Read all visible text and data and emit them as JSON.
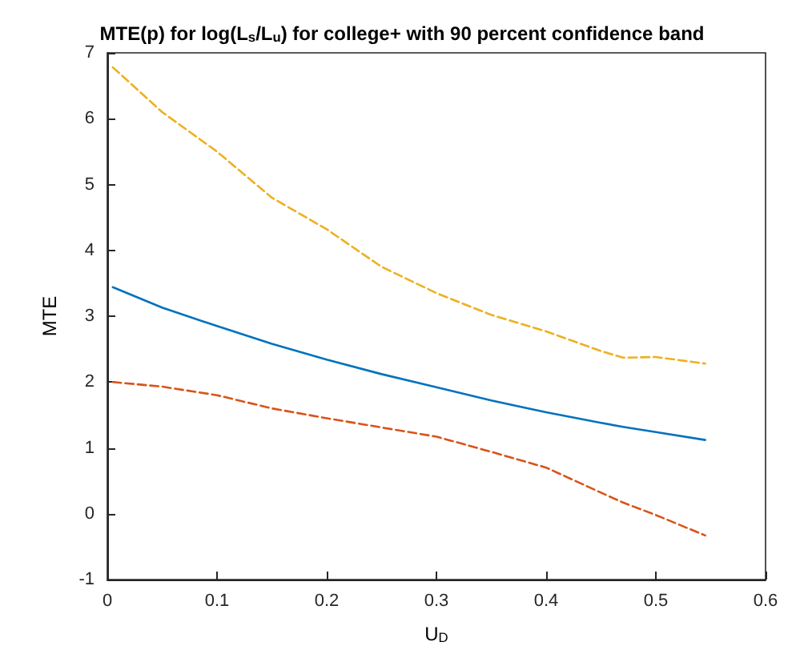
{
  "chart_data": {
    "type": "line",
    "title": "MTE(p) for log(L$_{s}$/L$_{u}$) for college+ with 90 percent confidence band",
    "xlabel": "U$_{D}$",
    "ylabel": "MTE",
    "x": [
      0.005,
      0.05,
      0.1,
      0.15,
      0.2,
      0.25,
      0.3,
      0.35,
      0.4,
      0.45,
      0.47,
      0.5,
      0.545
    ],
    "series": [
      {
        "color": "#0072bd",
        "line_style": "solid",
        "values": [
          3.44,
          3.13,
          2.85,
          2.58,
          2.34,
          2.12,
          1.92,
          1.72,
          1.54,
          1.38,
          1.32,
          1.24,
          1.12
        ]
      },
      {
        "color": "#edb120",
        "line_style": "dashed",
        "values": [
          6.78,
          6.1,
          5.5,
          4.8,
          4.32,
          3.75,
          3.35,
          3.02,
          2.77,
          2.47,
          2.37,
          2.38,
          2.28
        ]
      },
      {
        "color": "#d95319",
        "line_style": "dashed",
        "values": [
          2.0,
          1.93,
          1.8,
          1.6,
          1.45,
          1.31,
          1.17,
          0.94,
          0.7,
          0.32,
          0.17,
          -0.02,
          -0.33
        ]
      }
    ],
    "xlim": [
      0,
      0.6
    ],
    "xticks": [
      0,
      0.1,
      0.2,
      0.3,
      0.4,
      0.5,
      0.6
    ],
    "ylim": [
      -1,
      7
    ],
    "yticks": [
      -1,
      0,
      1,
      2,
      3,
      4,
      5,
      6,
      7
    ],
    "grid": false,
    "marker": "none"
  }
}
